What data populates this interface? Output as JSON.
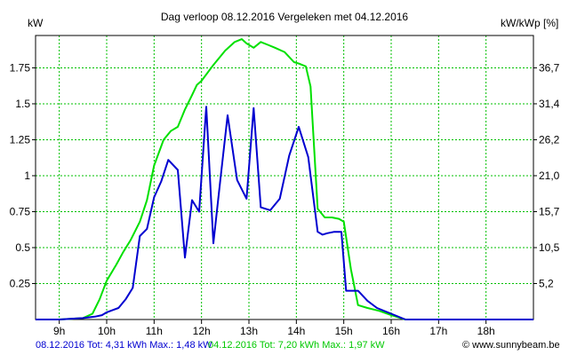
{
  "chart_data": {
    "type": "line",
    "title": "Dag  verloop 08.12.2016   Vergeleken met 04.12.2016",
    "ylabel_left": "kW",
    "ylabel_right": "kW/kWp [%]",
    "xlim": [
      8.5,
      19.0
    ],
    "ylim": [
      0,
      1.975
    ],
    "grid": true,
    "x_ticks": [
      9,
      10,
      11,
      12,
      13,
      14,
      15,
      16,
      17,
      18
    ],
    "x_tick_labels": [
      "9h",
      "10h",
      "11h",
      "12h",
      "13h",
      "14h",
      "15h",
      "16h",
      "17h",
      "18h"
    ],
    "y_ticks_left": [
      0.25,
      0.5,
      0.75,
      1,
      1.25,
      1.5,
      1.75
    ],
    "y_tick_labels_left": [
      "0.25",
      "0.5",
      "0.75",
      "1",
      "1.25",
      "1.5",
      "1.75"
    ],
    "y_ticks_right": [
      0.25,
      0.5,
      0.75,
      1,
      1.25,
      1.5,
      1.75
    ],
    "y_tick_labels_right": [
      "5,2",
      "10,5",
      "15,7",
      "21,0",
      "26,2",
      "31,4",
      "36,7"
    ],
    "series": [
      {
        "name": "08.12.2016",
        "color": "#0000d0",
        "x": [
          8.5,
          9.0,
          9.5,
          9.75,
          9.9,
          10.0,
          10.25,
          10.4,
          10.55,
          10.7,
          10.85,
          11.0,
          11.15,
          11.3,
          11.5,
          11.65,
          11.8,
          11.95,
          12.1,
          12.25,
          12.4,
          12.55,
          12.75,
          12.95,
          13.1,
          13.25,
          13.45,
          13.65,
          13.85,
          14.05,
          14.25,
          14.45,
          14.55,
          14.65,
          14.8,
          14.95,
          15.05,
          15.2,
          15.3,
          15.5,
          15.7,
          16.0,
          16.3,
          16.5,
          17.0,
          18.0,
          19.0
        ],
        "y": [
          0.0,
          0.0,
          0.01,
          0.02,
          0.03,
          0.05,
          0.08,
          0.14,
          0.22,
          0.58,
          0.63,
          0.85,
          0.96,
          1.11,
          1.04,
          0.43,
          0.83,
          0.75,
          1.48,
          0.53,
          0.98,
          1.42,
          0.97,
          0.84,
          1.47,
          0.78,
          0.76,
          0.84,
          1.14,
          1.34,
          1.13,
          0.61,
          0.59,
          0.6,
          0.61,
          0.61,
          0.2,
          0.2,
          0.2,
          0.13,
          0.08,
          0.04,
          0.0,
          0.0,
          0.0,
          0.0,
          0.0
        ]
      },
      {
        "name": "04.12.2016",
        "color": "#00e000",
        "x": [
          8.5,
          9.0,
          9.5,
          9.7,
          9.85,
          10.0,
          10.2,
          10.35,
          10.5,
          10.7,
          10.85,
          11.0,
          11.2,
          11.35,
          11.5,
          11.65,
          11.8,
          11.9,
          12.0,
          12.25,
          12.5,
          12.7,
          12.85,
          12.95,
          13.1,
          13.25,
          13.4,
          13.55,
          13.75,
          13.95,
          14.05,
          14.2,
          14.3,
          14.45,
          14.6,
          14.75,
          14.9,
          15.0,
          15.15,
          15.3,
          15.5,
          15.75,
          16.0,
          16.3,
          16.5,
          17.0,
          18.0,
          19.0
        ],
        "y": [
          0.0,
          0.0,
          0.01,
          0.04,
          0.14,
          0.27,
          0.38,
          0.47,
          0.55,
          0.68,
          0.83,
          1.07,
          1.25,
          1.31,
          1.34,
          1.46,
          1.56,
          1.63,
          1.66,
          1.77,
          1.87,
          1.93,
          1.95,
          1.92,
          1.89,
          1.93,
          1.91,
          1.89,
          1.86,
          1.79,
          1.78,
          1.76,
          1.62,
          0.77,
          0.71,
          0.71,
          0.7,
          0.68,
          0.35,
          0.1,
          0.08,
          0.06,
          0.03,
          0.0,
          0.0,
          0.0,
          0.0,
          0.0
        ]
      }
    ]
  },
  "footer": {
    "blue_text": "08.12.2016 Tot: 4,31 kWh Max.: 1,48 kW",
    "green_text": "04.12.2016 Tot: 7,20 kWh Max.: 1,97 kW",
    "credit_text": "www.sunnybeam.be"
  }
}
